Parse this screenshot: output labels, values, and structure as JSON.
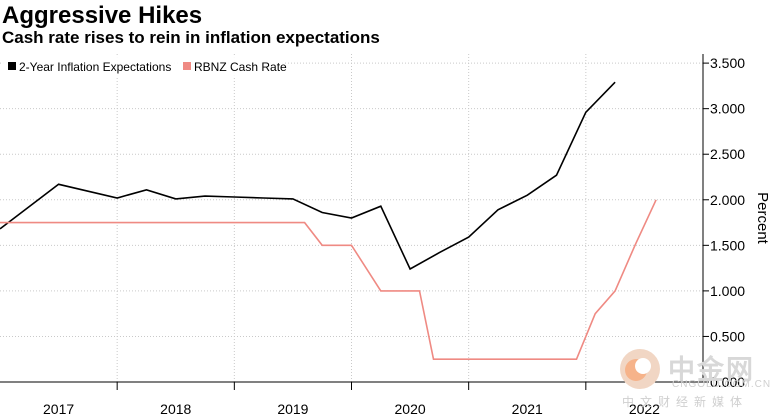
{
  "chart_data": {
    "type": "line",
    "title": "Aggressive Hikes",
    "subtitle": "Cash rate rises to rein in inflation expectations",
    "ylabel": "Percent",
    "ylim": [
      0,
      3.6
    ],
    "y_ticks": [
      "3.500",
      "3.000",
      "2.500",
      "2.000",
      "1.500",
      "1.000",
      "0.500",
      "0.000"
    ],
    "y_tick_values": [
      3.5,
      3.0,
      2.5,
      2.0,
      1.5,
      1.0,
      0.5,
      0.0
    ],
    "xlim": [
      2016.5,
      2022.5
    ],
    "x_ticks": [
      "2017",
      "2018",
      "2019",
      "2020",
      "2021",
      "2022"
    ],
    "x_tick_values": [
      2017.0,
      2018.0,
      2019.0,
      2020.0,
      2021.0,
      2022.0
    ],
    "series": [
      {
        "name": "2-Year Inflation Expectations",
        "color": "#000000",
        "x": [
          2016.5,
          2017.0,
          2017.5,
          2017.75,
          2018.0,
          2018.25,
          2018.5,
          2018.75,
          2019.0,
          2019.25,
          2019.5,
          2019.75,
          2020.0,
          2020.25,
          2020.5,
          2020.75,
          2021.0,
          2021.25,
          2021.5,
          2021.75
        ],
        "values": [
          1.68,
          2.17,
          2.02,
          2.11,
          2.01,
          2.04,
          2.03,
          2.02,
          2.01,
          1.86,
          1.8,
          1.93,
          1.24,
          1.42,
          1.59,
          1.89,
          2.05,
          2.27,
          2.96,
          3.29
        ]
      },
      {
        "name": "RBNZ Cash Rate",
        "color": "#ef8a83",
        "x": [
          2016.5,
          2018.75,
          2019.1,
          2019.25,
          2019.5,
          2019.75,
          2020.08,
          2020.2,
          2021.08,
          2021.2,
          2021.42,
          2021.58,
          2021.75,
          2021.92,
          2022.1
        ],
        "values": [
          1.75,
          1.75,
          1.75,
          1.5,
          1.5,
          1.0,
          1.0,
          0.25,
          0.25,
          0.25,
          0.25,
          0.75,
          1.0,
          1.5,
          2.0
        ]
      }
    ],
    "legend": "top-left",
    "grid": true
  },
  "watermark": {
    "brand": "中金网",
    "url": "CNGOLD.COM.CN",
    "tagline": "中文财经新媒体"
  }
}
